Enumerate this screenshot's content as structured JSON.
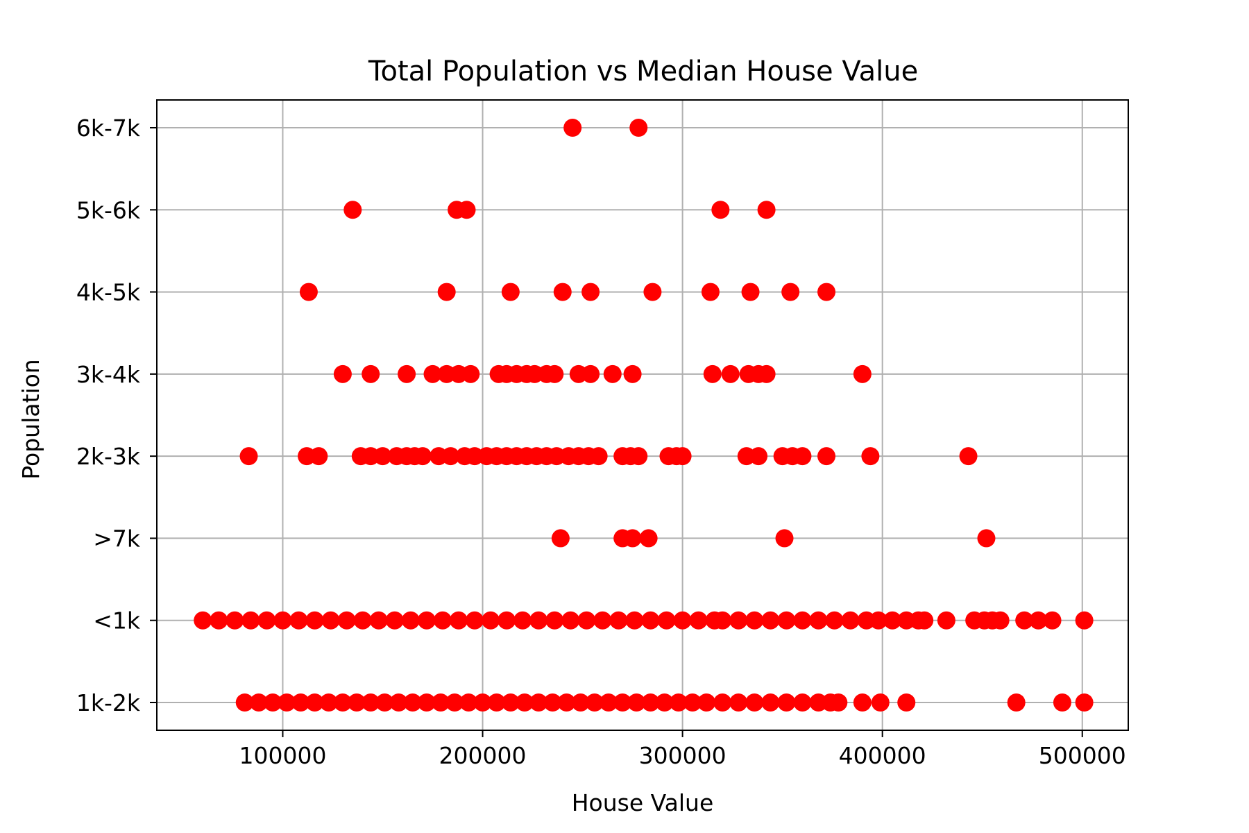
{
  "chart_data": {
    "type": "scatter",
    "title": "Total Population vs Median House Value",
    "xlabel": "House Value",
    "ylabel": "Population",
    "xlim": [
      37000,
      523000
    ],
    "x_ticks": [
      100000,
      200000,
      300000,
      400000,
      500000
    ],
    "categories": [
      "1k-2k",
      "<1k",
      ">7k",
      "2k-3k",
      "3k-4k",
      "4k-5k",
      "5k-6k",
      "6k-7k"
    ],
    "grid": true,
    "marker_color": "#ff0000",
    "series": [
      {
        "points": [
          {
            "category": "6k-7k",
            "x": [
              245000,
              278000
            ]
          },
          {
            "category": "5k-6k",
            "x": [
              135000,
              187000,
              192000,
              319000,
              342000
            ]
          },
          {
            "category": "4k-5k",
            "x": [
              113000,
              182000,
              214000,
              240000,
              254000,
              285000,
              314000,
              334000,
              354000,
              372000
            ]
          },
          {
            "category": "3k-4k",
            "x": [
              130000,
              144000,
              162000,
              175000,
              182000,
              188000,
              194000,
              208000,
              212000,
              217000,
              222000,
              226000,
              232000,
              236000,
              248000,
              254000,
              265000,
              275000,
              315000,
              324000,
              333000,
              338000,
              342000,
              390000
            ]
          },
          {
            "category": "2k-3k",
            "x": [
              83000,
              112000,
              118000,
              139000,
              144000,
              150000,
              157000,
              162000,
              166000,
              170000,
              178000,
              184000,
              191000,
              196000,
              202000,
              207000,
              212000,
              217000,
              222000,
              227000,
              232000,
              237000,
              243000,
              248000,
              253000,
              258000,
              270000,
              274000,
              278000,
              293000,
              297000,
              300000,
              332000,
              338000,
              350000,
              355000,
              360000,
              372000,
              394000,
              443000
            ]
          },
          {
            "category": ">7k",
            "x": [
              239000,
              270000,
              275000,
              283000,
              351000,
              452000
            ]
          },
          {
            "category": "<1k",
            "x": [
              60000,
              68000,
              76000,
              84000,
              92000,
              100000,
              108000,
              116000,
              124000,
              132000,
              140000,
              148000,
              156000,
              164000,
              172000,
              180000,
              188000,
              196000,
              204000,
              212000,
              220000,
              228000,
              236000,
              244000,
              252000,
              260000,
              268000,
              276000,
              284000,
              292000,
              300000,
              308000,
              316000,
              320000,
              328000,
              336000,
              344000,
              352000,
              360000,
              368000,
              376000,
              384000,
              392000,
              398000,
              405000,
              412000,
              418000,
              421000,
              432000,
              446000,
              451000,
              455000,
              459000,
              471000,
              478000,
              485000,
              501000
            ]
          },
          {
            "category": "1k-2k",
            "x": [
              81000,
              88000,
              95000,
              102000,
              109000,
              116000,
              123000,
              130000,
              137000,
              144000,
              151000,
              158000,
              165000,
              172000,
              179000,
              186000,
              193000,
              200000,
              207000,
              214000,
              221000,
              228000,
              235000,
              242000,
              249000,
              256000,
              263000,
              270000,
              277000,
              284000,
              291000,
              298000,
              305000,
              312000,
              320000,
              328000,
              336000,
              344000,
              352000,
              360000,
              368000,
              374000,
              378000,
              390000,
              399000,
              412000,
              467000,
              490000,
              501000
            ]
          }
        ]
      }
    ]
  }
}
